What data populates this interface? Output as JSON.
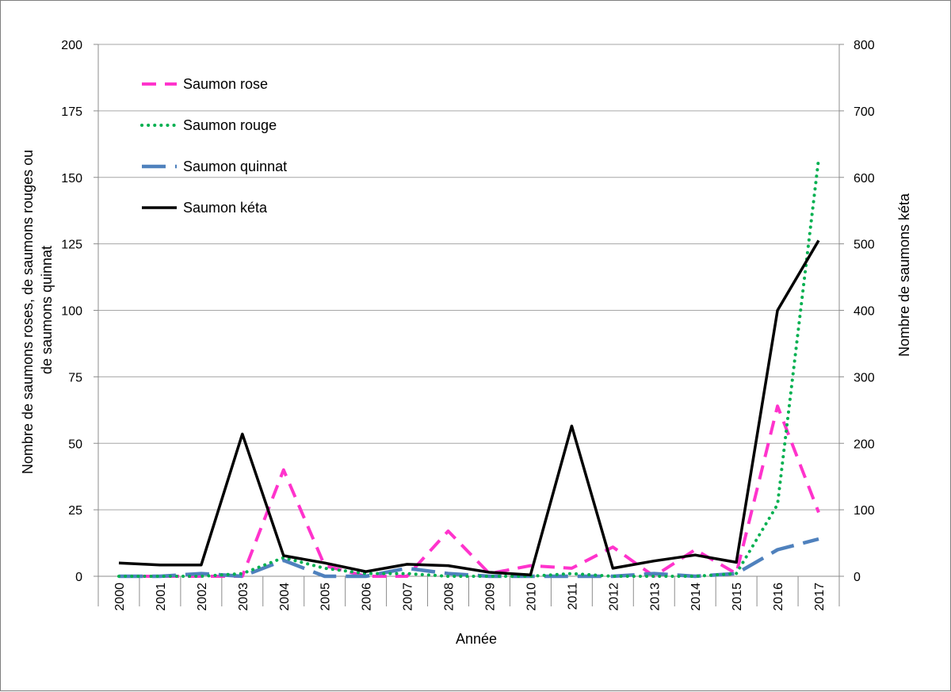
{
  "chart_data": {
    "type": "line",
    "title": "",
    "xlabel": "Année",
    "ylabel_left": "Nombre de saumons roses, de saumons rouges ou de saumons quinnat",
    "ylabel_left_lines": [
      "Nombre de saumons roses, de saumons rouges ou",
      "de saumons quinnat"
    ],
    "ylabel_right": "Nombre de saumons kéta",
    "categories": [
      "2000",
      "2001",
      "2002",
      "2003",
      "2004",
      "2005",
      "2006",
      "2007",
      "2008",
      "2009",
      "2010",
      "2011",
      "2012",
      "2013",
      "2014",
      "2015",
      "2016",
      "2017"
    ],
    "y_left": {
      "min": 0,
      "max": 200,
      "ticks": [
        "0",
        "25",
        "50",
        "75",
        "100",
        "125",
        "150",
        "175",
        "200"
      ]
    },
    "y_right": {
      "min": 0,
      "max": 800,
      "ticks": [
        "0",
        "100",
        "200",
        "300",
        "400",
        "500",
        "600",
        "700",
        "800"
      ]
    },
    "grid": true,
    "legend_position": "top-left",
    "series": [
      {
        "name": "Saumon rose",
        "axis": "left",
        "style": "dash",
        "color": "#ff33cc",
        "values": [
          0,
          0,
          0,
          0,
          40,
          4,
          0,
          0,
          17,
          1,
          4,
          3,
          11,
          0,
          10,
          1,
          64,
          24
        ]
      },
      {
        "name": "Saumon rouge",
        "axis": "left",
        "style": "dot",
        "color": "#00b050",
        "values": [
          0,
          0,
          0,
          1,
          7,
          3,
          1,
          1,
          0,
          0,
          0,
          1,
          0,
          0,
          0,
          1,
          27,
          157
        ]
      },
      {
        "name": "Saumon quinnat",
        "axis": "left",
        "style": "longdash",
        "color": "#4f81bd",
        "values": [
          0,
          0,
          1,
          0,
          6,
          0,
          0,
          3,
          1,
          0,
          0,
          0,
          0,
          1,
          0,
          1,
          10,
          14
        ]
      },
      {
        "name": "Saumon kéta",
        "axis": "right",
        "style": "solid",
        "color": "#000000",
        "values": [
          20,
          17,
          17,
          214,
          31,
          20,
          7,
          18,
          16,
          6,
          2,
          226,
          12,
          23,
          32,
          21,
          400,
          505
        ]
      }
    ]
  }
}
